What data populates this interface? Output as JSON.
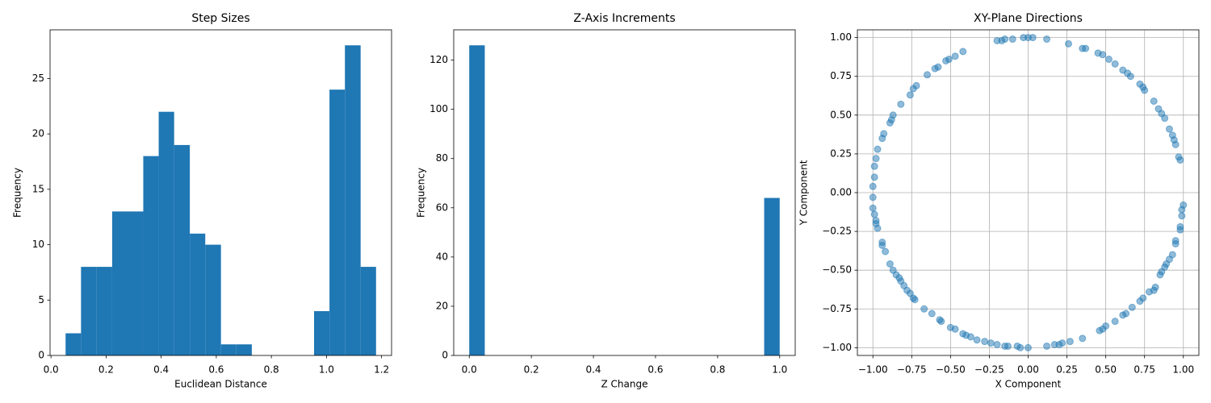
{
  "chart_data": [
    {
      "type": "histogram",
      "title": "Step Sizes",
      "xlabel": "Euclidean Distance",
      "ylabel": "Frequency",
      "color": "#1f77b4",
      "bins": [
        0.053,
        0.109,
        0.166,
        0.222,
        0.278,
        0.335,
        0.391,
        0.447,
        0.504,
        0.56,
        0.617,
        0.673,
        0.729,
        0.786,
        0.842,
        0.898,
        0.955,
        1.011,
        1.067,
        1.124,
        1.18
      ],
      "values": [
        2,
        8,
        8,
        13,
        13,
        18,
        22,
        19,
        11,
        10,
        1,
        1,
        0,
        0,
        0,
        0,
        4,
        24,
        28,
        8
      ],
      "xlim": [
        -0.0034,
        1.2363
      ],
      "ylim": [
        0,
        29.4
      ],
      "xticks": [
        {
          "value": 0,
          "label": "0.0"
        },
        0.2,
        0.4,
        0.6,
        0.8,
        {
          "value": 1,
          "label": "1.0"
        },
        1.2
      ],
      "yticks": [
        0,
        5,
        10,
        15,
        20,
        25
      ],
      "grid": false
    },
    {
      "type": "histogram",
      "title": "Z-Axis Increments",
      "xlabel": "Z Change",
      "ylabel": "Frequency",
      "color": "#1f77b4",
      "bins": [
        0,
        0.05,
        0.1,
        0.15,
        0.2,
        0.25,
        0.3,
        0.35,
        0.4,
        0.45,
        0.5,
        0.55,
        0.6,
        0.65,
        0.7,
        0.75,
        0.8,
        0.85,
        0.9,
        0.95,
        1
      ],
      "values": [
        126,
        0,
        0,
        0,
        0,
        0,
        0,
        0,
        0,
        0,
        0,
        0,
        0,
        0,
        0,
        0,
        0,
        0,
        0,
        64
      ],
      "xlim": [
        -0.05,
        1.05
      ],
      "ylim": [
        0,
        132.3
      ],
      "xticks": [
        {
          "value": 0,
          "label": "0.0"
        },
        0.2,
        0.4,
        0.6,
        0.8,
        {
          "value": 1,
          "label": "1.0"
        }
      ],
      "yticks": [
        0,
        20,
        40,
        60,
        80,
        100,
        120
      ],
      "grid": false
    },
    {
      "type": "scatter",
      "title": "XY-Plane Directions",
      "xlabel": "X Component",
      "ylabel": "Y Component",
      "color": "#1f77b4",
      "alpha": 0.5,
      "x": [
        -0.2,
        -0.17,
        -0.15,
        -0.1,
        -0.03,
        0.0,
        0.03,
        0.12,
        0.26,
        0.35,
        0.37,
        0.45,
        0.48,
        0.52,
        0.56,
        0.61,
        0.64,
        0.66,
        0.72,
        0.74,
        0.75,
        0.81,
        0.84,
        0.86,
        0.88,
        0.91,
        0.93,
        0.94,
        0.95,
        0.97,
        0.98,
        1.0,
        0.99,
        0.99,
        0.98,
        0.98,
        0.95,
        0.95,
        0.93,
        0.91,
        0.89,
        0.88,
        0.86,
        0.85,
        0.82,
        0.81,
        0.78,
        0.74,
        0.72,
        0.67,
        0.63,
        0.61,
        0.56,
        0.5,
        0.48,
        0.46,
        0.35,
        0.27,
        0.22,
        0.2,
        0.17,
        0.12,
        0.0,
        -0.05,
        -0.07,
        -0.13,
        -0.15,
        -0.2,
        -0.24,
        -0.28,
        -0.33,
        -0.37,
        -0.4,
        -0.42,
        -0.47,
        -0.5,
        -0.56,
        -0.57,
        -0.62,
        -0.67,
        -0.73,
        -0.74,
        -0.76,
        -0.78,
        -0.8,
        -0.82,
        -0.83,
        -0.85,
        -0.87,
        -0.89,
        -0.92,
        -0.94,
        -0.94,
        -0.97,
        -0.98,
        -0.98,
        -0.99,
        -1.0,
        -1.0,
        -1.0,
        -0.99,
        -0.99,
        -0.98,
        -0.97,
        -0.94,
        -0.93,
        -0.89,
        -0.88,
        -0.87,
        -0.82,
        -0.76,
        -0.74,
        -0.72,
        -0.65,
        -0.6,
        -0.58,
        -0.53,
        -0.51,
        -0.47,
        -0.42
      ],
      "values": [
        0.98,
        0.98,
        0.99,
        0.99,
        1.0,
        1.0,
        1.0,
        0.99,
        0.96,
        0.93,
        0.93,
        0.9,
        0.89,
        0.86,
        0.83,
        0.79,
        0.77,
        0.75,
        0.7,
        0.68,
        0.66,
        0.59,
        0.54,
        0.51,
        0.48,
        0.41,
        0.37,
        0.34,
        0.31,
        0.23,
        0.21,
        -0.08,
        -0.11,
        -0.15,
        -0.22,
        -0.24,
        -0.31,
        -0.33,
        -0.4,
        -0.43,
        -0.46,
        -0.48,
        -0.51,
        -0.53,
        -0.61,
        -0.63,
        -0.64,
        -0.68,
        -0.7,
        -0.74,
        -0.78,
        -0.79,
        -0.83,
        -0.86,
        -0.88,
        -0.89,
        -0.94,
        -0.96,
        -0.97,
        -0.98,
        -0.98,
        -0.99,
        -1.0,
        -1.0,
        -0.99,
        -0.99,
        -0.99,
        -0.98,
        -0.97,
        -0.96,
        -0.95,
        -0.93,
        -0.92,
        -0.91,
        -0.88,
        -0.87,
        -0.83,
        -0.82,
        -0.78,
        -0.75,
        -0.69,
        -0.68,
        -0.65,
        -0.63,
        -0.6,
        -0.57,
        -0.55,
        -0.53,
        -0.5,
        -0.46,
        -0.38,
        -0.34,
        -0.32,
        -0.23,
        -0.2,
        -0.18,
        -0.14,
        -0.1,
        -0.03,
        0.04,
        0.1,
        0.17,
        0.22,
        0.28,
        0.35,
        0.38,
        0.45,
        0.47,
        0.5,
        0.57,
        0.63,
        0.67,
        0.69,
        0.76,
        0.8,
        0.81,
        0.85,
        0.86,
        0.88,
        0.91
      ],
      "xlim": [
        -1.1,
        1.1
      ],
      "ylim": [
        -1.05,
        1.05
      ],
      "xticks": [
        {
          "value": -1,
          "label": "−1.00"
        },
        {
          "value": -0.75,
          "label": "−0.75"
        },
        {
          "value": -0.5,
          "label": "−0.50"
        },
        {
          "value": -0.25,
          "label": "−0.25"
        },
        {
          "value": 0,
          "label": "0.00"
        },
        {
          "value": 0.25,
          "label": "0.25"
        },
        {
          "value": 0.5,
          "label": "0.50"
        },
        {
          "value": 0.75,
          "label": "0.75"
        },
        {
          "value": 1,
          "label": "1.00"
        }
      ],
      "yticks": [
        {
          "value": -1,
          "label": "−1.00"
        },
        {
          "value": -0.75,
          "label": "−0.75"
        },
        {
          "value": -0.5,
          "label": "−0.50"
        },
        {
          "value": -0.25,
          "label": "−0.25"
        },
        {
          "value": 0,
          "label": "0.00"
        },
        {
          "value": 0.25,
          "label": "0.25"
        },
        {
          "value": 0.5,
          "label": "0.50"
        },
        {
          "value": 0.75,
          "label": "0.75"
        },
        {
          "value": 1,
          "label": "1.00"
        }
      ],
      "grid": true
    }
  ]
}
